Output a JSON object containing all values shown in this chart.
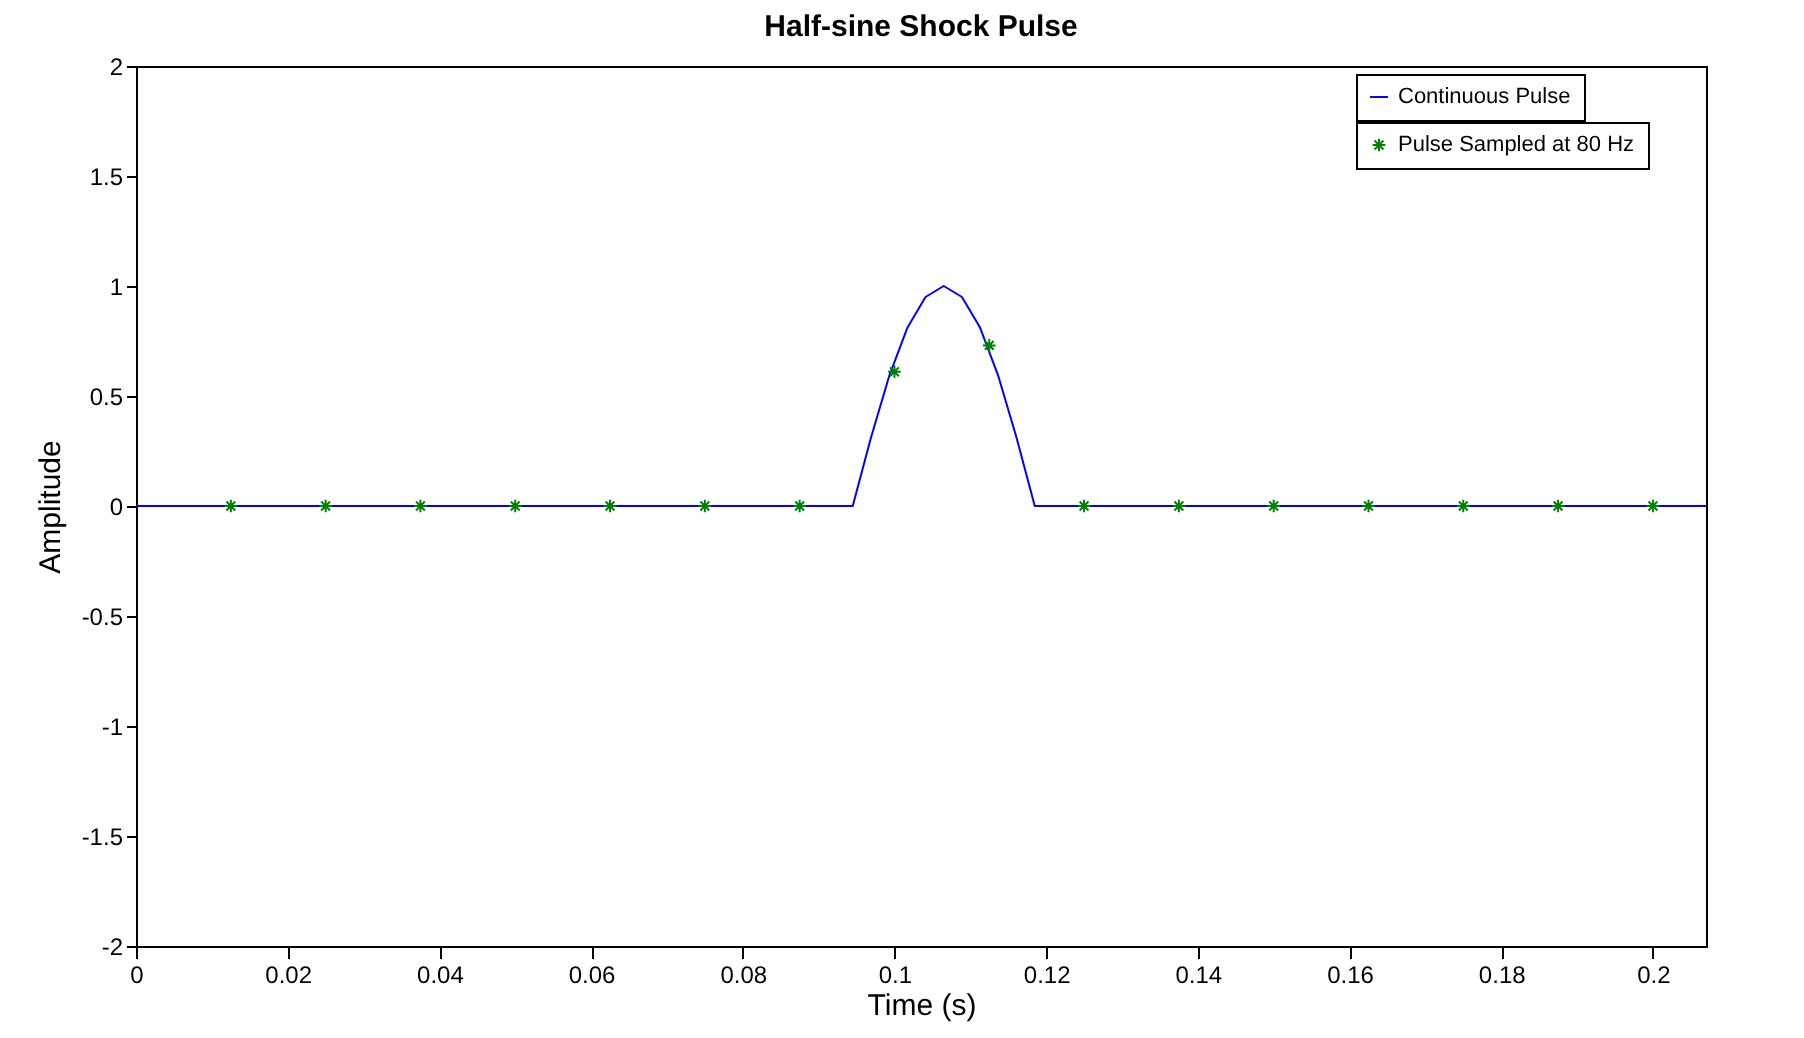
{
  "chart_data": {
    "type": "line",
    "title": "Half-sine Shock Pulse",
    "xlabel": "Time (s)",
    "ylabel": "Amplitude",
    "xlim": [
      0,
      0.207
    ],
    "xticks": [
      0,
      0.02,
      0.04,
      0.06,
      0.08,
      0.1,
      0.12,
      0.14,
      0.16,
      0.18,
      0.2
    ],
    "ylim": [
      -2,
      2
    ],
    "yticks": [
      -2,
      -1.5,
      -1,
      -0.5,
      0,
      0.5,
      1,
      1.5,
      2
    ],
    "grid": false,
    "legend": "top right",
    "series": [
      {
        "name": "Continuous Pulse",
        "color": "#0000ff",
        "marker": "none",
        "line_style": "solid",
        "x": [
          0,
          0.0945,
          0.0969,
          0.0993,
          0.1017,
          0.1041,
          0.1065,
          0.1089,
          0.1113,
          0.1137,
          0.1161,
          0.1185,
          0.207
        ],
        "values": [
          0,
          0,
          0.31,
          0.59,
          0.81,
          0.95,
          1,
          0.95,
          0.81,
          0.59,
          0.31,
          0,
          0
        ]
      },
      {
        "name": "Pulse Sampled at 80 Hz",
        "type": "scatter",
        "color": "#008000",
        "marker": "cross",
        "x": [
          0.0125,
          0.025,
          0.0375,
          0.05,
          0.0625,
          0.075,
          0.0875,
          0.1,
          0.1125,
          0.125,
          0.1375,
          0.15,
          0.1625,
          0.175,
          0.1875,
          0.2
        ],
        "values": [
          0,
          0,
          0,
          0,
          0,
          0,
          0,
          0.61,
          0.73,
          0,
          0,
          0,
          0,
          0,
          0,
          0
        ]
      }
    ]
  }
}
